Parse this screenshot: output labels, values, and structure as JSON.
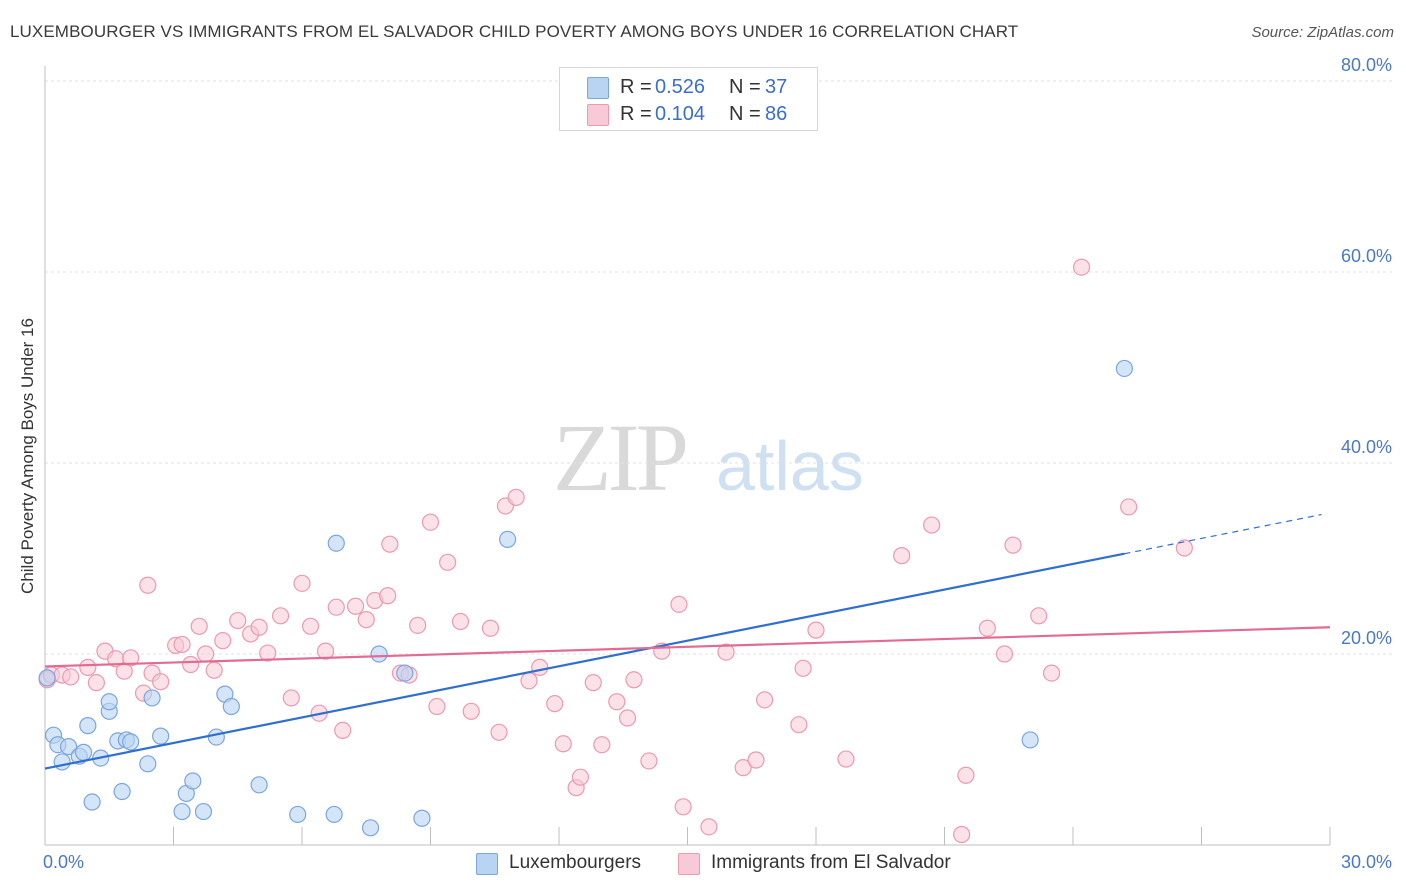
{
  "header": {
    "title": "LUXEMBOURGER VS IMMIGRANTS FROM EL SALVADOR CHILD POVERTY AMONG BOYS UNDER 16 CORRELATION CHART",
    "source": "Source: ZipAtlas.com"
  },
  "watermark": {
    "zip": "ZIP",
    "atlas": "atlas"
  },
  "legend": {
    "rows": [
      {
        "r_label": "R =",
        "r_value": "0.526",
        "n_label": "N =",
        "n_value": "37"
      },
      {
        "r_label": "R =",
        "r_value": "0.104",
        "n_label": "N =",
        "n_value": "86"
      }
    ]
  },
  "colors": {
    "blue_fill": "#b9d3f3",
    "blue_stroke": "#7aa6de",
    "blue_line": "#2f6fd0",
    "pink_fill": "#f8c9d6",
    "pink_stroke": "#ea9ab2",
    "pink_line": "#e36b93",
    "tick_text": "#4a78c8",
    "grid": "#e2e2e2"
  },
  "chart_data": {
    "type": "scatter",
    "title": "LUXEMBOURGER VS IMMIGRANTS FROM EL SALVADOR CHILD POVERTY AMONG BOYS UNDER 16 CORRELATION CHART",
    "xlabel": "",
    "ylabel": "Child Poverty Among Boys Under 16",
    "xlim": [
      0,
      30
    ],
    "ylim": [
      0,
      80
    ],
    "x_ticks": [
      "0.0%",
      "30.0%"
    ],
    "y_ticks": [
      "20.0%",
      "40.0%",
      "60.0%",
      "80.0%"
    ],
    "y_tick_values": [
      20,
      40,
      60,
      80
    ],
    "grid": true,
    "legend_position": "top-center",
    "series": [
      {
        "name": "Luxembourgers",
        "r": 0.526,
        "n": 37,
        "color": "#b9d3f3",
        "trend": {
          "x0": 0,
          "y0": 8,
          "x1": 25.2,
          "y1": 30.5,
          "dash_to_x": 29.8,
          "dash_to_y": 34.6
        },
        "points": [
          [
            0.05,
            17.5
          ],
          [
            0.2,
            11.5
          ],
          [
            0.3,
            10.5
          ],
          [
            0.4,
            8.7
          ],
          [
            0.55,
            10.3
          ],
          [
            0.8,
            9.3
          ],
          [
            0.9,
            9.7
          ],
          [
            1.0,
            12.5
          ],
          [
            1.1,
            4.5
          ],
          [
            1.3,
            9.1
          ],
          [
            1.5,
            14.0
          ],
          [
            1.5,
            15.0
          ],
          [
            1.7,
            10.9
          ],
          [
            1.8,
            5.6
          ],
          [
            1.9,
            11.0
          ],
          [
            2.0,
            10.8
          ],
          [
            2.4,
            8.5
          ],
          [
            2.5,
            15.4
          ],
          [
            2.7,
            11.4
          ],
          [
            3.2,
            3.5
          ],
          [
            3.3,
            5.4
          ],
          [
            3.45,
            6.7
          ],
          [
            3.7,
            3.5
          ],
          [
            4.0,
            11.3
          ],
          [
            4.2,
            15.8
          ],
          [
            4.35,
            14.5
          ],
          [
            5.0,
            6.3
          ],
          [
            5.9,
            3.2
          ],
          [
            6.8,
            31.6
          ],
          [
            6.75,
            3.2
          ],
          [
            7.6,
            1.8
          ],
          [
            7.8,
            20.0
          ],
          [
            8.4,
            18.0
          ],
          [
            8.8,
            2.8
          ],
          [
            10.8,
            32.0
          ],
          [
            23.0,
            11.0
          ],
          [
            25.2,
            49.9
          ]
        ]
      },
      {
        "name": "Immigrants from El Salvador",
        "r": 0.104,
        "n": 86,
        "color": "#f8c9d6",
        "trend": {
          "x0": 0,
          "y0": 18.7,
          "x1": 30,
          "y1": 22.8
        },
        "points": [
          [
            0.05,
            17.3
          ],
          [
            0.15,
            17.8
          ],
          [
            0.4,
            17.8
          ],
          [
            0.6,
            17.6
          ],
          [
            1.0,
            18.6
          ],
          [
            1.2,
            17.0
          ],
          [
            1.4,
            20.3
          ],
          [
            1.65,
            19.5
          ],
          [
            1.85,
            18.2
          ],
          [
            2.0,
            19.6
          ],
          [
            2.3,
            15.9
          ],
          [
            2.4,
            27.2
          ],
          [
            2.5,
            18.0
          ],
          [
            2.7,
            17.1
          ],
          [
            3.05,
            20.9
          ],
          [
            3.2,
            21.0
          ],
          [
            3.4,
            18.9
          ],
          [
            3.6,
            22.9
          ],
          [
            3.75,
            20.0
          ],
          [
            3.95,
            18.3
          ],
          [
            4.15,
            21.4
          ],
          [
            4.5,
            23.5
          ],
          [
            4.8,
            22.1
          ],
          [
            5.0,
            22.8
          ],
          [
            5.2,
            20.1
          ],
          [
            5.5,
            24.0
          ],
          [
            5.75,
            15.4
          ],
          [
            6.0,
            27.4
          ],
          [
            6.2,
            22.9
          ],
          [
            6.4,
            13.8
          ],
          [
            6.55,
            20.3
          ],
          [
            6.8,
            24.9
          ],
          [
            6.95,
            12.0
          ],
          [
            7.25,
            25.0
          ],
          [
            7.5,
            23.6
          ],
          [
            7.7,
            25.6
          ],
          [
            8.0,
            26.1
          ],
          [
            8.05,
            31.5
          ],
          [
            8.3,
            18.0
          ],
          [
            8.5,
            17.8
          ],
          [
            8.7,
            23.0
          ],
          [
            9.0,
            33.8
          ],
          [
            9.15,
            14.5
          ],
          [
            9.4,
            29.6
          ],
          [
            9.7,
            23.4
          ],
          [
            9.95,
            14.0
          ],
          [
            10.4,
            22.7
          ],
          [
            10.6,
            11.8
          ],
          [
            10.75,
            35.5
          ],
          [
            11.0,
            36.4
          ],
          [
            11.3,
            17.2
          ],
          [
            11.55,
            18.6
          ],
          [
            11.9,
            14.8
          ],
          [
            12.1,
            10.6
          ],
          [
            12.4,
            6.0
          ],
          [
            12.5,
            7.1
          ],
          [
            12.8,
            17.0
          ],
          [
            13.0,
            10.5
          ],
          [
            13.35,
            15.0
          ],
          [
            13.6,
            13.3
          ],
          [
            13.75,
            17.3
          ],
          [
            14.1,
            8.8
          ],
          [
            14.4,
            20.3
          ],
          [
            14.8,
            25.2
          ],
          [
            14.9,
            4.0
          ],
          [
            15.5,
            1.9
          ],
          [
            15.9,
            20.2
          ],
          [
            16.3,
            8.1
          ],
          [
            16.6,
            8.9
          ],
          [
            16.8,
            15.2
          ],
          [
            17.6,
            12.6
          ],
          [
            17.7,
            18.5
          ],
          [
            18.0,
            22.5
          ],
          [
            18.7,
            9.0
          ],
          [
            20.0,
            30.3
          ],
          [
            20.7,
            33.5
          ],
          [
            21.5,
            7.3
          ],
          [
            21.4,
            1.1
          ],
          [
            22.0,
            22.7
          ],
          [
            22.4,
            20.0
          ],
          [
            22.6,
            31.4
          ],
          [
            23.2,
            24.0
          ],
          [
            23.5,
            18.0
          ],
          [
            25.3,
            35.4
          ],
          [
            24.2,
            60.5
          ],
          [
            26.6,
            31.1
          ]
        ]
      }
    ]
  }
}
